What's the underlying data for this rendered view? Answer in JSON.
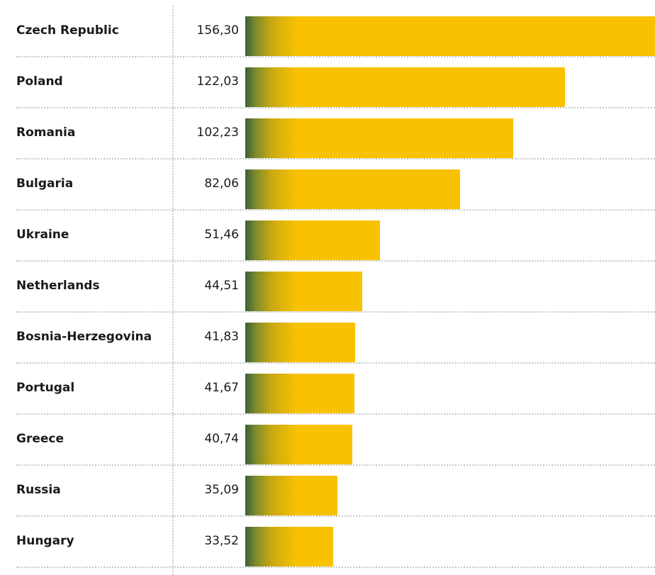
{
  "chart_data": {
    "type": "bar",
    "orientation": "horizontal",
    "categories": [
      "Czech Republic",
      "Poland",
      "Romania",
      "Bulgaria",
      "Ukraine",
      "Netherlands",
      "Bosnia-Herzegovina",
      "Portugal",
      "Greece",
      "Russia",
      "Hungary"
    ],
    "values": [
      156.3,
      122.03,
      102.23,
      82.06,
      51.46,
      44.51,
      41.83,
      41.67,
      40.74,
      35.09,
      33.52
    ],
    "value_labels": [
      "156,30",
      "122,03",
      "102,23",
      "82,06",
      "51,46",
      "44,51",
      "41,83",
      "41,67",
      "40,74",
      "35,09",
      "33,52"
    ],
    "xlim": [
      0,
      156.3
    ],
    "grid": false,
    "legend": "none",
    "colors": {
      "bar": "#f8c200",
      "bar_gradient_start": "#3b5e3a",
      "text": "#1a1a1a",
      "separator": "#c8c8c8"
    }
  }
}
